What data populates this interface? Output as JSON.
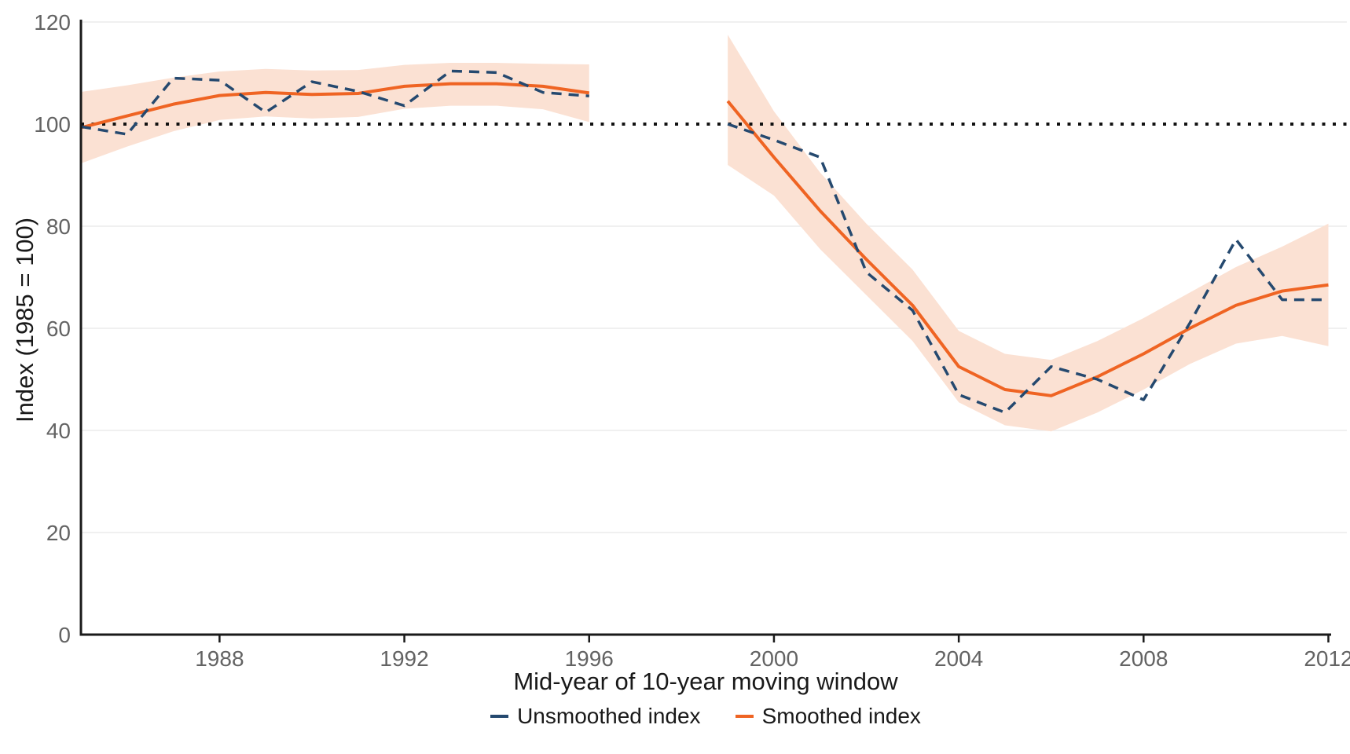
{
  "figure": {
    "ylabel": "Index (1985 = 100)",
    "xlabel": "Mid-year of 10-year moving window",
    "legend": [
      {
        "label": "Unsmoothed index",
        "color": "#25496F",
        "dashed": true
      },
      {
        "label": "Smoothed index",
        "color": "#EF6423",
        "dashed": false
      }
    ]
  },
  "chart_data": {
    "type": "line",
    "title": "",
    "xlabel": "Mid-year of 10-year moving window",
    "ylabel": "Index (1985 = 100)",
    "xlim": [
      1985,
      2012.4
    ],
    "ylim": [
      0,
      120
    ],
    "x_ticks": [
      1988,
      1992,
      1996,
      2000,
      2004,
      2008,
      2012
    ],
    "y_ticks": [
      0,
      20,
      40,
      60,
      80,
      100,
      120
    ],
    "reference_line_y": 100,
    "grid": "horizontal-light",
    "legend_position": "bottom",
    "colors": {
      "unsmoothed": "#25496F",
      "smoothed": "#EF6423",
      "band": "#FBE1D3",
      "grid": "#ECECEC",
      "axis": "#1A1A1A",
      "tick_label": "#636363",
      "reference": "#111111"
    },
    "series": [
      {
        "name": "smoothed-confidence-band-1985-1996",
        "type": "band",
        "x": [
          1985,
          1986,
          1987,
          1988,
          1989,
          1990,
          1991,
          1992,
          1993,
          1994,
          1995,
          1996
        ],
        "lower": [
          92.3,
          95.6,
          98.6,
          100.8,
          101.5,
          101.1,
          101.4,
          103.0,
          103.6,
          103.6,
          102.9,
          100.4
        ],
        "upper": [
          106.3,
          107.6,
          109.1,
          110.3,
          110.8,
          110.5,
          110.6,
          111.6,
          112.0,
          112.0,
          111.8,
          111.7
        ]
      },
      {
        "name": "smoothed-confidence-band-1999-2012",
        "type": "band",
        "x": [
          1999,
          2000,
          2001,
          2002,
          2003,
          2004,
          2005,
          2006,
          2007,
          2008,
          2009,
          2010,
          2011,
          2012
        ],
        "lower": [
          92.0,
          86.0,
          75.5,
          66.5,
          57.5,
          45.5,
          41.0,
          39.8,
          43.5,
          48.0,
          53.0,
          57.0,
          58.5,
          56.5
        ],
        "upper": [
          117.5,
          102.5,
          90.5,
          80.5,
          71.5,
          59.5,
          55.0,
          53.8,
          57.5,
          62.0,
          67.0,
          72.0,
          76.0,
          80.5
        ]
      },
      {
        "name": "smoothed-index-1985-1996",
        "type": "line",
        "dashed": false,
        "color": "#EF6423",
        "x": [
          1985,
          1986,
          1987,
          1988,
          1989,
          1990,
          1991,
          1992,
          1993,
          1994,
          1995,
          1996
        ],
        "y": [
          99.3,
          101.6,
          103.9,
          105.6,
          106.2,
          105.8,
          106.0,
          107.4,
          107.9,
          107.9,
          107.4,
          106.1
        ]
      },
      {
        "name": "smoothed-index-1999-2012",
        "type": "line",
        "dashed": false,
        "color": "#EF6423",
        "x": [
          1999,
          2000,
          2001,
          2002,
          2003,
          2004,
          2005,
          2006,
          2007,
          2008,
          2009,
          2010,
          2011,
          2012
        ],
        "y": [
          104.5,
          93.5,
          83.0,
          73.5,
          64.5,
          52.5,
          48.0,
          46.8,
          50.5,
          55.0,
          60.0,
          64.5,
          67.3,
          68.5
        ]
      },
      {
        "name": "unsmoothed-index-1985-1996",
        "type": "line",
        "dashed": true,
        "color": "#25496F",
        "x": [
          1985,
          1986,
          1987,
          1988,
          1989,
          1990,
          1991,
          1992,
          1993,
          1994,
          1995,
          1996
        ],
        "y": [
          99.5,
          98.0,
          109.0,
          108.6,
          102.3,
          108.3,
          106.4,
          103.6,
          110.4,
          110.1,
          106.2,
          105.5
        ]
      },
      {
        "name": "unsmoothed-index-1999-2012",
        "type": "line",
        "dashed": true,
        "color": "#25496F",
        "x": [
          1999,
          2000,
          2001,
          2002,
          2003,
          2004,
          2005,
          2006,
          2007,
          2008,
          2009,
          2010,
          2011,
          2012
        ],
        "y": [
          100.0,
          96.9,
          93.5,
          71.0,
          63.5,
          47.0,
          43.5,
          52.5,
          50.0,
          46.0,
          61.0,
          77.4,
          65.6,
          65.6
        ]
      }
    ]
  }
}
